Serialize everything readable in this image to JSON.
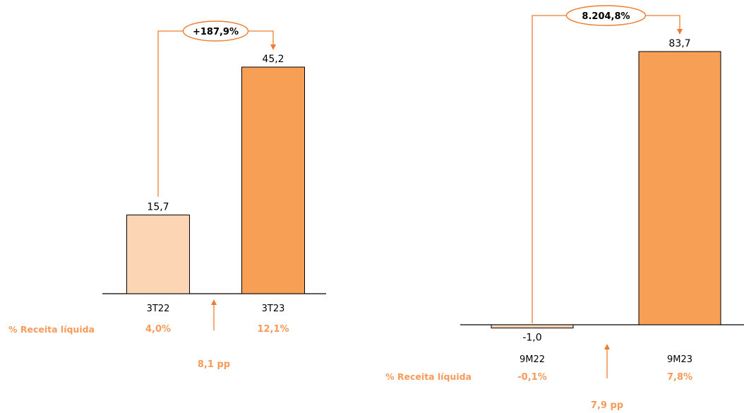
{
  "chart_data": [
    {
      "type": "bar",
      "categories": [
        "3T22",
        "3T23"
      ],
      "values": [
        15.7,
        45.2
      ],
      "value_labels": [
        "15,7",
        "45,2"
      ],
      "percent_row_label": "% Receita líquida",
      "percent_values": [
        "4,0%",
        "12,1%"
      ],
      "growth_label": "+187,9%",
      "pp_change": "8,1 pp",
      "colors": [
        "#fcd5b4",
        "#f79f55"
      ]
    },
    {
      "type": "bar",
      "categories": [
        "9M22",
        "9M23"
      ],
      "values": [
        -1.0,
        83.7
      ],
      "value_labels": [
        "-1,0",
        "83,7"
      ],
      "percent_row_label": "% Receita líquida",
      "percent_values": [
        "-0,1%",
        "7,8%"
      ],
      "growth_label": "8.204,8%",
      "pp_change": "7,9 pp",
      "colors": [
        "#fcd5b4",
        "#f79f55"
      ]
    }
  ],
  "colors": {
    "accent": "#f79a5a",
    "line": "#ed7d31",
    "bar_outline": "#000000"
  }
}
